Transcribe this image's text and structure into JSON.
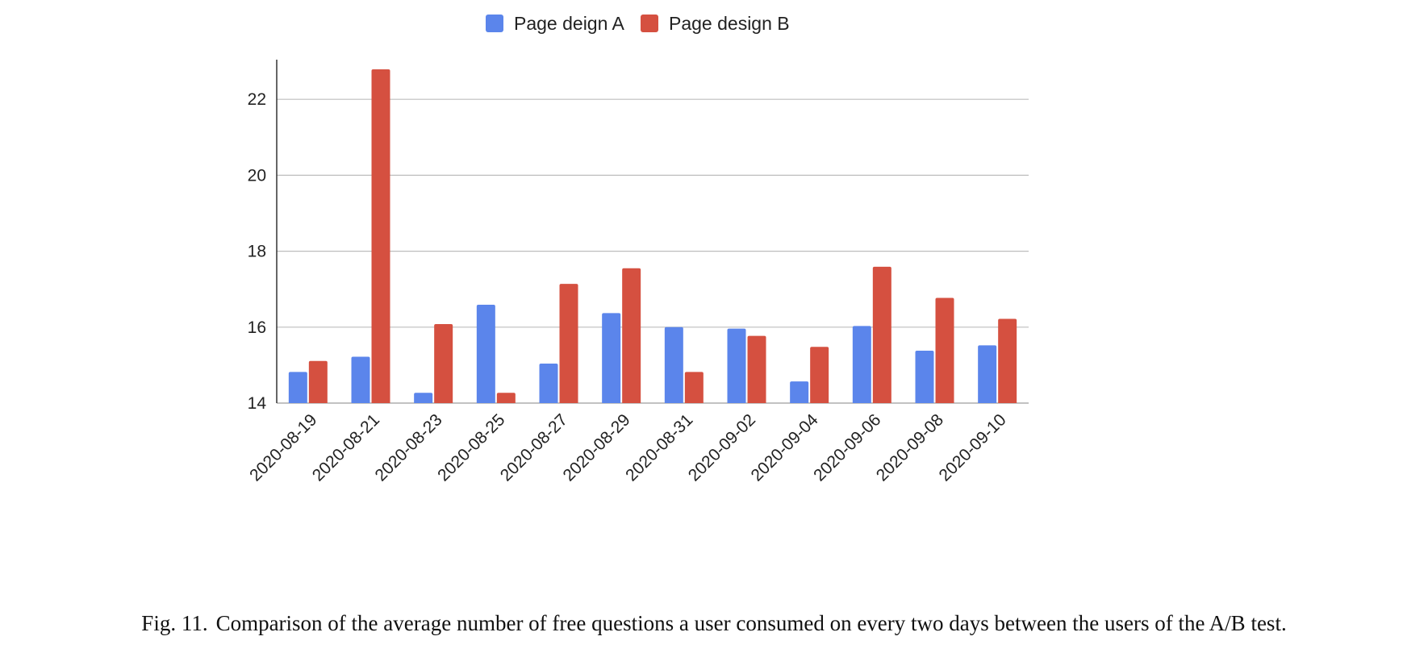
{
  "chart_data": {
    "type": "bar",
    "title": "",
    "xlabel": "",
    "ylabel": "",
    "categories": [
      "2020-08-19",
      "2020-08-21",
      "2020-08-23",
      "2020-08-25",
      "2020-08-27",
      "2020-08-29",
      "2020-08-31",
      "2020-09-02",
      "2020-09-04",
      "2020-09-06",
      "2020-09-08",
      "2020-09-10"
    ],
    "series": [
      {
        "name": "Page deign A",
        "color": "#5b85eb",
        "values": [
          14.82,
          15.22,
          14.27,
          16.59,
          15.04,
          16.37,
          16.0,
          15.96,
          14.57,
          16.03,
          15.38,
          15.52
        ]
      },
      {
        "name": "Page design B",
        "color": "#d55040",
        "values": [
          15.11,
          22.79,
          16.08,
          14.27,
          17.14,
          17.55,
          14.82,
          15.77,
          15.48,
          17.59,
          16.77,
          16.22
        ]
      }
    ],
    "ylim": [
      14,
      23
    ],
    "yticks": [
      14,
      16,
      18,
      20,
      22
    ],
    "grid": true,
    "legend": "top-center"
  },
  "caption": {
    "label": "Fig. 11.",
    "text": "Comparison of the average number of free questions a user consumed on every two days between the users of the A/B test."
  }
}
